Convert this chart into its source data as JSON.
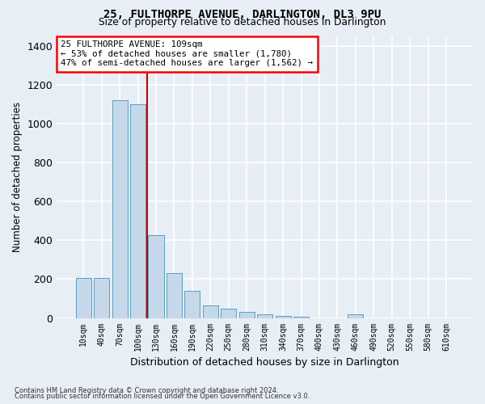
{
  "title": "25, FULTHORPE AVENUE, DARLINGTON, DL3 9PU",
  "subtitle": "Size of property relative to detached houses in Darlington",
  "xlabel": "Distribution of detached houses by size in Darlington",
  "ylabel": "Number of detached properties",
  "footnote1": "Contains HM Land Registry data © Crown copyright and database right 2024.",
  "footnote2": "Contains public sector information licensed under the Open Government Licence v3.0.",
  "bar_labels": [
    "10sqm",
    "40sqm",
    "70sqm",
    "100sqm",
    "130sqm",
    "160sqm",
    "190sqm",
    "220sqm",
    "250sqm",
    "280sqm",
    "310sqm",
    "340sqm",
    "370sqm",
    "400sqm",
    "430sqm",
    "460sqm",
    "490sqm",
    "520sqm",
    "550sqm",
    "580sqm",
    "610sqm"
  ],
  "bar_values": [
    207,
    207,
    1120,
    1100,
    425,
    232,
    140,
    65,
    47,
    30,
    18,
    10,
    8,
    0,
    0,
    20,
    0,
    0,
    0,
    0,
    0
  ],
  "bar_color": "#c5d8ea",
  "bar_edge_color": "#5b9dc0",
  "ylim": [
    0,
    1450
  ],
  "yticks": [
    0,
    200,
    400,
    600,
    800,
    1000,
    1200,
    1400
  ],
  "annotation_box_text": "25 FULTHORPE AVENUE: 109sqm\n← 53% of detached houses are smaller (1,780)\n47% of semi-detached houses are larger (1,562) →",
  "vline_x": 3.5,
  "vline_color": "#cc0000",
  "bg_color": "#e8eef5",
  "plot_bg_color": "#e8eef5",
  "grid_color": "#c8d4e0"
}
